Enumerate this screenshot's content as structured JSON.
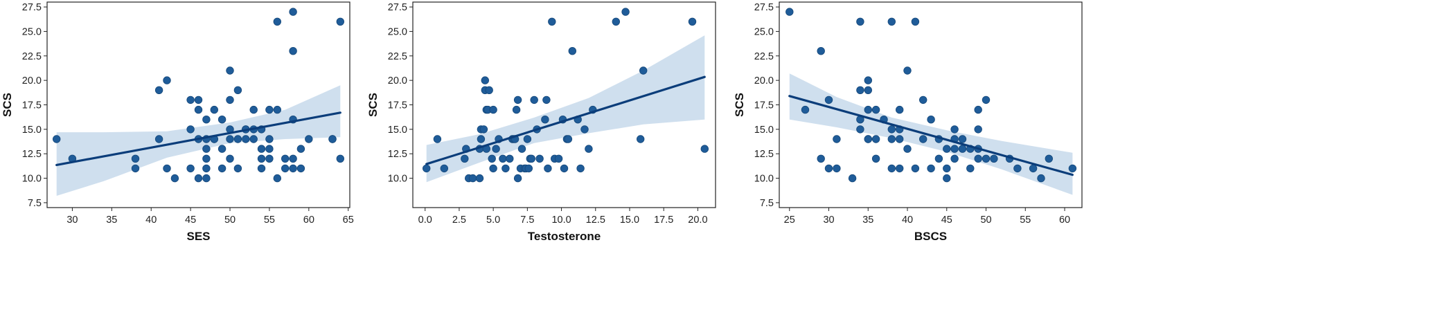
{
  "chart_data": [
    {
      "type": "scatter",
      "title": "",
      "xlabel": "SES",
      "ylabel": "SCS",
      "xlim": [
        26.8,
        65.2
      ],
      "ylim": [
        7.0,
        28.0
      ],
      "xticks": [
        30,
        35,
        40,
        45,
        50,
        55,
        60,
        65
      ],
      "yticks": [
        7.5,
        10.0,
        12.5,
        15.0,
        17.5,
        20.0,
        22.5,
        25.0,
        27.5
      ],
      "x": [
        28,
        30,
        38,
        38,
        41,
        41,
        42,
        42,
        43,
        45,
        45,
        45,
        46,
        46,
        46,
        46,
        47,
        47,
        47,
        47,
        47,
        47,
        48,
        48,
        48,
        49,
        49,
        49,
        50,
        50,
        50,
        50,
        50,
        51,
        51,
        51,
        52,
        52,
        52,
        53,
        53,
        53,
        54,
        54,
        54,
        54,
        55,
        55,
        55,
        55,
        56,
        56,
        56,
        57,
        57,
        58,
        58,
        58,
        58,
        58,
        59,
        59,
        60,
        63,
        63,
        64,
        64
      ],
      "y": [
        14,
        12,
        12,
        11,
        19,
        14,
        20,
        11,
        10,
        18,
        15,
        11,
        18,
        17,
        14,
        10,
        16,
        14,
        13,
        12,
        11,
        10,
        17,
        14,
        14,
        16,
        13,
        11,
        21,
        18,
        15,
        14,
        12,
        19,
        14,
        11,
        15,
        15,
        14,
        17,
        15,
        14,
        15,
        13,
        12,
        11,
        17,
        14,
        13,
        12,
        26,
        17,
        10,
        12,
        11,
        27,
        23,
        16,
        12,
        11,
        13,
        11,
        14,
        14,
        14,
        26,
        12
      ],
      "regression": {
        "x": [
          28,
          64
        ],
        "y": [
          11.35,
          16.7
        ]
      },
      "ci_upper": [
        14.7,
        14.7,
        14.8,
        15.7,
        17.0,
        19.5
      ],
      "ci_lower": [
        8.2,
        9.7,
        12.1,
        13.6,
        14.0,
        14.2
      ],
      "ci_x": [
        28,
        34,
        42,
        50,
        57,
        64
      ],
      "point_color": "#1f5c99",
      "line_color": "#0b3d7a",
      "band_color": "#cfdfee"
    },
    {
      "type": "scatter",
      "title": "",
      "xlabel": "Testosterone",
      "ylabel": "SCS",
      "xlim": [
        -0.9,
        21.3
      ],
      "ylim": [
        7.0,
        28.0
      ],
      "xticks": [
        0.0,
        2.5,
        5.0,
        7.5,
        10.0,
        12.5,
        15.0,
        17.5,
        20.0
      ],
      "yticks": [
        10.0,
        12.5,
        15.0,
        17.5,
        20.0,
        22.5,
        25.0,
        27.5
      ],
      "x": [
        0.1,
        0.9,
        1.4,
        2.9,
        3.0,
        3.2,
        3.5,
        4.0,
        4.0,
        4.1,
        4.1,
        4.3,
        4.4,
        4.4,
        4.5,
        4.5,
        4.6,
        4.7,
        4.9,
        5.0,
        5.0,
        5.2,
        5.4,
        5.7,
        5.9,
        6.2,
        6.4,
        6.5,
        6.6,
        6.7,
        6.8,
        6.8,
        7.0,
        7.1,
        7.3,
        7.4,
        7.5,
        7.6,
        7.7,
        7.8,
        8.0,
        8.2,
        8.4,
        8.8,
        8.9,
        9.0,
        9.3,
        9.5,
        9.8,
        10.1,
        10.2,
        10.4,
        10.5,
        10.8,
        11.2,
        11.4,
        11.7,
        12.0,
        12.3,
        14.0,
        14.7,
        15.8,
        16.0,
        19.6,
        20.5
      ],
      "y": [
        11,
        14,
        11,
        12,
        13,
        10,
        10,
        10,
        13,
        15,
        14,
        15,
        20,
        19,
        17,
        13,
        17,
        19,
        12,
        17,
        11,
        13,
        14,
        12,
        11,
        12,
        14,
        14,
        14,
        17,
        18,
        10,
        11,
        13,
        11,
        11,
        14,
        11,
        12,
        12,
        18,
        15,
        12,
        16,
        18,
        11,
        26,
        12,
        12,
        16,
        11,
        14,
        14,
        23,
        16,
        11,
        15,
        13,
        17,
        26,
        27,
        14,
        21,
        26,
        13
      ],
      "regression": {
        "x": [
          0.1,
          20.5
        ],
        "y": [
          11.45,
          20.35
        ]
      },
      "ci_upper": [
        13.4,
        14.5,
        16.2,
        18.2,
        21.0,
        24.6
      ],
      "ci_lower": [
        9.6,
        11.6,
        13.6,
        14.6,
        15.5,
        16.0
      ],
      "ci_x": [
        0.1,
        4.0,
        8.0,
        12.0,
        16.0,
        20.5
      ],
      "point_color": "#1f5c99",
      "line_color": "#0b3d7a",
      "band_color": "#cfdfee"
    },
    {
      "type": "scatter",
      "title": "",
      "xlabel": "BSCS",
      "ylabel": "SCS",
      "xlim": [
        23.7,
        62.2
      ],
      "ylim": [
        7.0,
        28.0
      ],
      "xticks": [
        25,
        30,
        35,
        40,
        45,
        50,
        55,
        60
      ],
      "yticks": [
        7.5,
        10.0,
        12.5,
        15.0,
        17.5,
        20.0,
        22.5,
        25.0,
        27.5
      ],
      "x": [
        25,
        27,
        29,
        29,
        30,
        30,
        31,
        31,
        33,
        34,
        34,
        34,
        34,
        35,
        35,
        35,
        35,
        35,
        36,
        36,
        36,
        37,
        38,
        38,
        38,
        38,
        39,
        39,
        39,
        39,
        40,
        40,
        41,
        41,
        42,
        42,
        43,
        43,
        44,
        44,
        45,
        45,
        45,
        46,
        46,
        46,
        46,
        47,
        47,
        48,
        48,
        49,
        49,
        49,
        49,
        50,
        50,
        51,
        53,
        54,
        56,
        57,
        58,
        61
      ],
      "y": [
        27,
        17,
        23,
        12,
        18,
        11,
        14,
        11,
        10,
        26,
        19,
        16,
        15,
        20,
        19,
        17,
        14,
        14,
        17,
        14,
        12,
        16,
        26,
        15,
        14,
        11,
        17,
        15,
        14,
        11,
        21,
        13,
        26,
        11,
        18,
        14,
        16,
        11,
        14,
        12,
        13,
        11,
        10,
        15,
        14,
        13,
        12,
        14,
        13,
        13,
        11,
        17,
        15,
        13,
        12,
        18,
        12,
        12,
        12,
        11,
        11,
        10,
        12,
        11
      ],
      "regression": {
        "x": [
          25,
          61
        ],
        "y": [
          18.4,
          10.35
        ]
      },
      "ci_upper": [
        20.7,
        18.3,
        16.2,
        14.9,
        13.8,
        12.6
      ],
      "ci_lower": [
        16.0,
        15.2,
        14.1,
        12.7,
        10.9,
        8.3
      ],
      "ci_x": [
        25,
        31,
        38,
        45,
        52,
        61
      ],
      "point_color": "#1f5c99",
      "line_color": "#0b3d7a",
      "band_color": "#cfdfee"
    }
  ]
}
